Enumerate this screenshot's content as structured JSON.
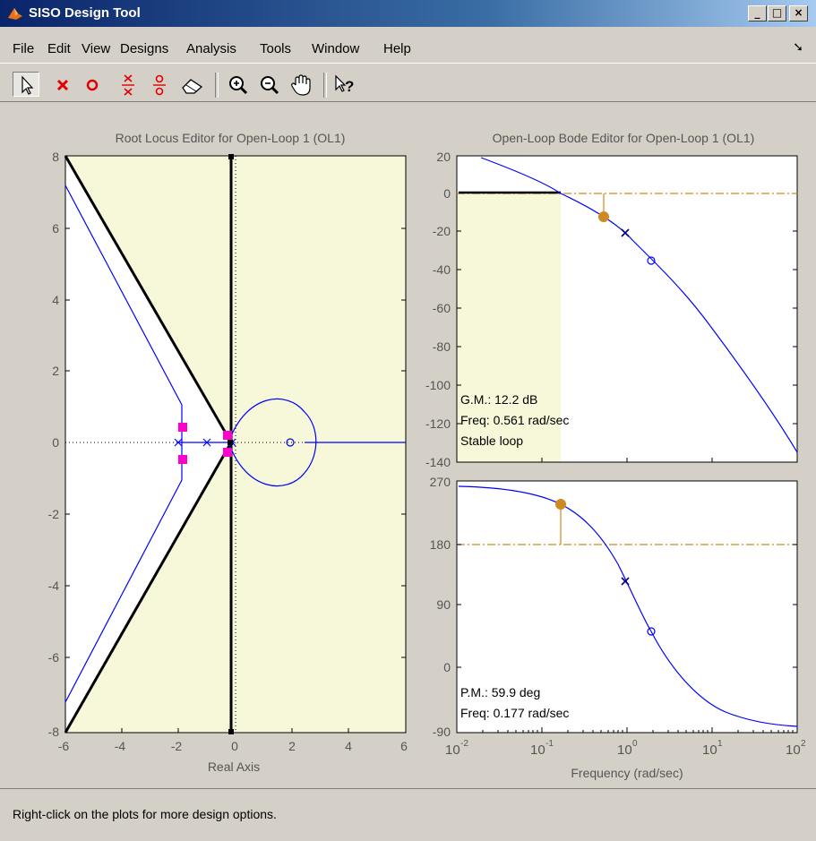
{
  "window": {
    "title": "SISO Design Tool",
    "buttons": {
      "minimize": "_",
      "maximize": "□",
      "close": "×"
    }
  },
  "menu": {
    "items": [
      "File",
      "Edit",
      "View",
      "Designs",
      "Analysis",
      "Tools",
      "Window",
      "Help"
    ]
  },
  "toolbar": {
    "tools": [
      "select-arrow-icon",
      "add-real-pole-icon",
      "add-real-zero-icon",
      "add-complex-pole-icon",
      "add-complex-zero-icon",
      "eraser-icon",
      "zoom-in-icon",
      "zoom-out-icon",
      "pan-hand-icon",
      "whats-this-help-icon"
    ]
  },
  "root_locus": {
    "title": "Root Locus Editor for Open-Loop 1 (OL1)",
    "xlabel": "Real Axis",
    "x_ticks": [
      "-6",
      "-4",
      "-2",
      "0",
      "2",
      "4",
      "6"
    ],
    "y_ticks": [
      "8",
      "6",
      "4",
      "2",
      "0",
      "-2",
      "-4",
      "-6",
      "-8"
    ]
  },
  "bode_mag": {
    "title": "Open-Loop Bode Editor for Open-Loop 1 (OL1)",
    "y_ticks": [
      "20",
      "0",
      "-20",
      "-40",
      "-60",
      "-80",
      "-100",
      "-120",
      "-140"
    ],
    "gm_label": "G.M.: 12.2 dB",
    "gm_freq": "Freq: 0.561 rad/sec",
    "stability": "Stable loop"
  },
  "bode_phase": {
    "y_ticks": [
      "270",
      "180",
      "90",
      "0",
      "-90"
    ],
    "pm_label": "P.M.: 59.9 deg",
    "pm_freq": "Freq: 0.177 rad/sec",
    "x_ticks": [
      "10",
      "10",
      "10",
      "10",
      "10"
    ],
    "x_tick_exps": [
      "-2",
      "-1",
      "0",
      "1",
      "2"
    ],
    "xlabel": "Frequency (rad/sec)"
  },
  "status": {
    "message": "Right-click on the plots for more design options."
  },
  "colors": {
    "root_locus_branch": "#0000ff",
    "stability_region": "#f7f7d9",
    "damping_lines": "#000000",
    "closed_loop_pole": "#ff00cc",
    "margin_marker": "#cc8a22"
  }
}
